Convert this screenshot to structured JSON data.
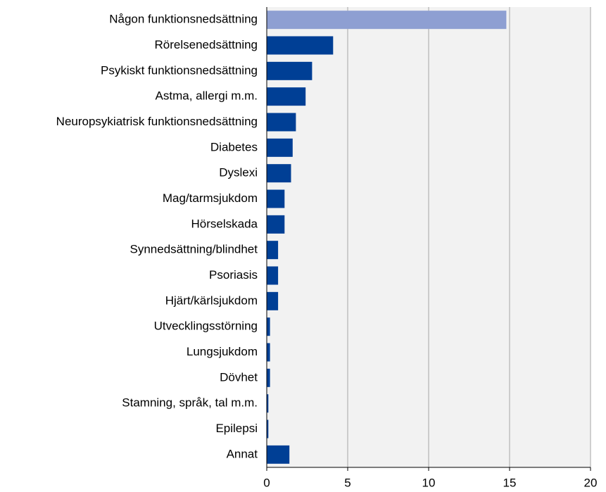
{
  "chart_data": {
    "type": "barh",
    "categories": [
      "Någon funktionsnedsättning",
      "Rörelsenedsättning",
      "Psykiskt funktionsnedsättning",
      "Astma, allergi m.m.",
      "Neuropsykiatrisk funktionsnedsättning",
      "Diabetes",
      "Dyslexi",
      "Mag/tarmsjukdom",
      "Hörselskada",
      "Synnedsättning/blindhet",
      "Psoriasis",
      "Hjärt/kärlsjukdom",
      "Utvecklingsstörning",
      "Lungsjukdom",
      "Dövhet",
      "Stamning, språk, tal m.m.",
      "Epilepsi",
      "Annat"
    ],
    "values": [
      14.8,
      4.1,
      2.8,
      2.4,
      1.8,
      1.6,
      1.5,
      1.1,
      1.1,
      0.7,
      0.7,
      0.7,
      0.2,
      0.2,
      0.2,
      0.1,
      0.1,
      1.4
    ],
    "colors": [
      "#8e9fd2",
      "#003f95",
      "#003f95",
      "#003f95",
      "#003f95",
      "#003f95",
      "#003f95",
      "#003f95",
      "#003f95",
      "#003f95",
      "#003f95",
      "#003f95",
      "#003f95",
      "#003f95",
      "#003f95",
      "#003f95",
      "#003f95",
      "#003f95"
    ],
    "xlim": [
      0,
      20
    ],
    "xticks": [
      0,
      5,
      10,
      15,
      20
    ],
    "grid": true
  }
}
